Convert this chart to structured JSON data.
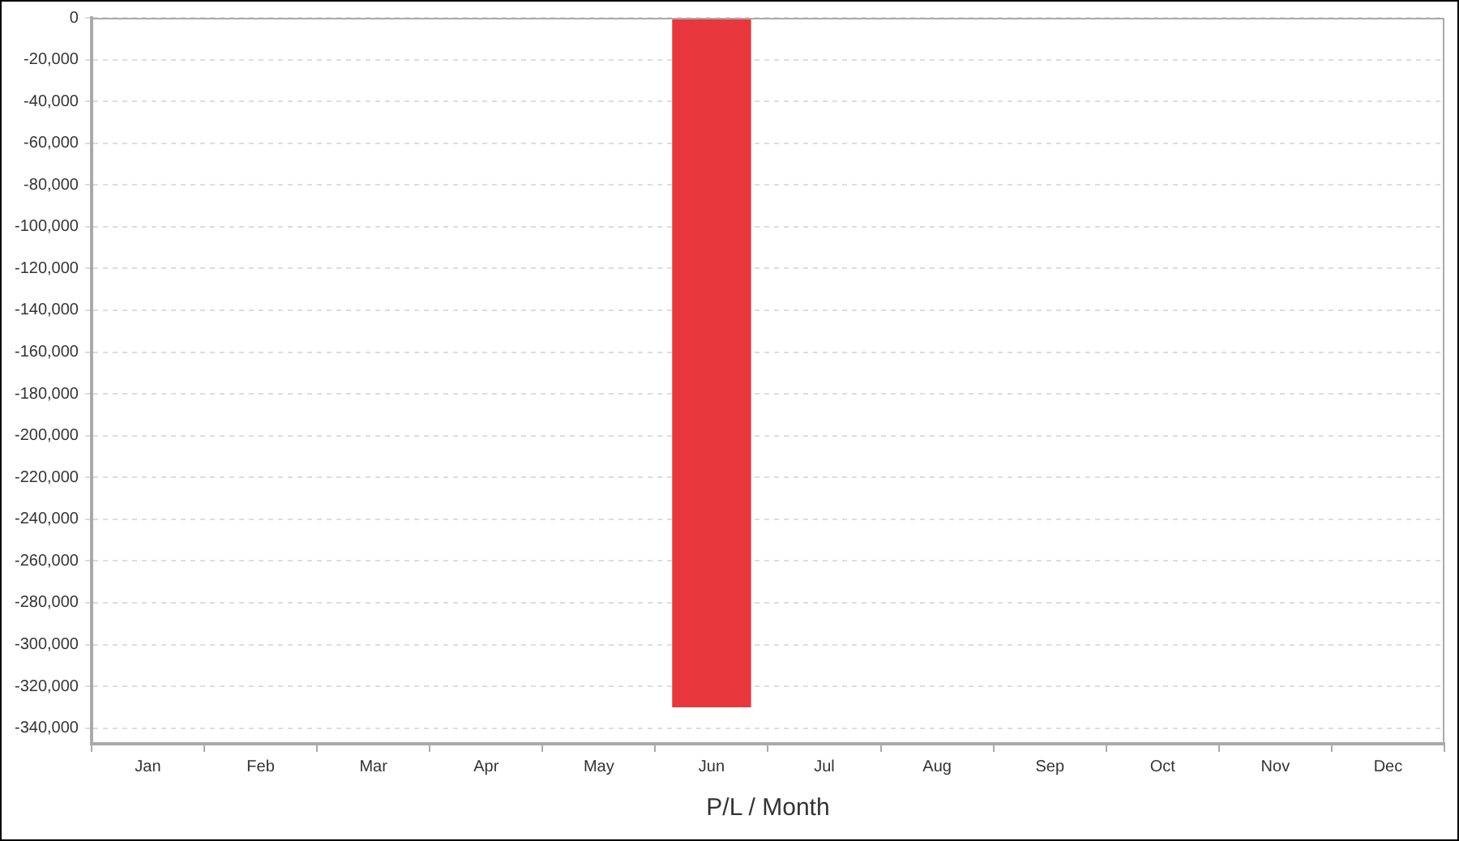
{
  "chart_data": {
    "type": "bar",
    "xlabel": "P/L / Month",
    "categories": [
      "Jan",
      "Feb",
      "Mar",
      "Apr",
      "May",
      "Jun",
      "Jul",
      "Aug",
      "Sep",
      "Oct",
      "Nov",
      "Dec"
    ],
    "values": [
      null,
      null,
      null,
      null,
      null,
      -330000,
      null,
      null,
      null,
      null,
      null,
      null
    ],
    "color": "#e8383d",
    "ylim": [
      -347500,
      0
    ],
    "yticks": [
      0,
      {
        "value": -20000,
        "label": "-20,000"
      },
      {
        "value": -40000,
        "label": "-40,000"
      },
      {
        "value": -60000,
        "label": "-60,000"
      },
      {
        "value": -80000,
        "label": "-80,000"
      },
      {
        "value": -100000,
        "label": "-100,000"
      },
      {
        "value": -120000,
        "label": "-120,000"
      },
      {
        "value": -140000,
        "label": "-140,000"
      },
      {
        "value": -160000,
        "label": "-160,000"
      },
      {
        "value": -180000,
        "label": "-180,000"
      },
      {
        "value": -200000,
        "label": "-200,000"
      },
      {
        "value": -220000,
        "label": "-220,000"
      },
      {
        "value": -240000,
        "label": "-240,000"
      },
      {
        "value": -260000,
        "label": "-260,000"
      },
      {
        "value": -280000,
        "label": "-280,000"
      },
      {
        "value": -300000,
        "label": "-300,000"
      },
      {
        "value": -320000,
        "label": "-320,000"
      },
      {
        "value": -340000,
        "label": "-340,000"
      }
    ],
    "grid": "y",
    "legend": false
  }
}
